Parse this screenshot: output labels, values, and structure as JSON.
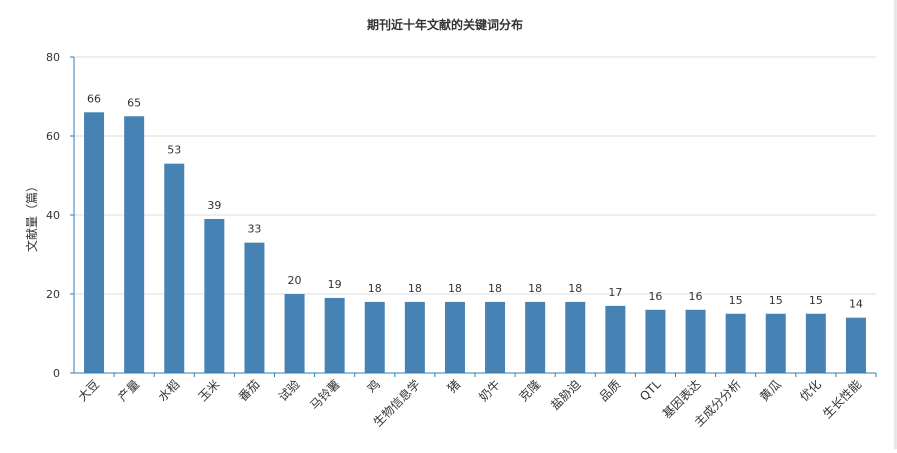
{
  "chart_data": {
    "type": "bar",
    "title": "期刊近十年文献的关键词分布",
    "xlabel": "",
    "ylabel": "文献量（篇）",
    "ylim": [
      0,
      80
    ],
    "yticks": [
      0,
      20,
      40,
      60,
      80
    ],
    "grid": true,
    "legend": "none",
    "bar_color": "#4682b4",
    "categories": [
      "大豆",
      "产量",
      "水稻",
      "玉米",
      "番茄",
      "试验",
      "马铃薯",
      "鸡",
      "生物信息学",
      "猪",
      "奶牛",
      "克隆",
      "盐胁迫",
      "品质",
      "QTL",
      "基因表达",
      "主成分分析",
      "黄瓜",
      "优化",
      "生长性能"
    ],
    "values": [
      66,
      65,
      53,
      39,
      33,
      20,
      19,
      18,
      18,
      18,
      18,
      18,
      18,
      17,
      16,
      16,
      15,
      15,
      15,
      14
    ]
  }
}
